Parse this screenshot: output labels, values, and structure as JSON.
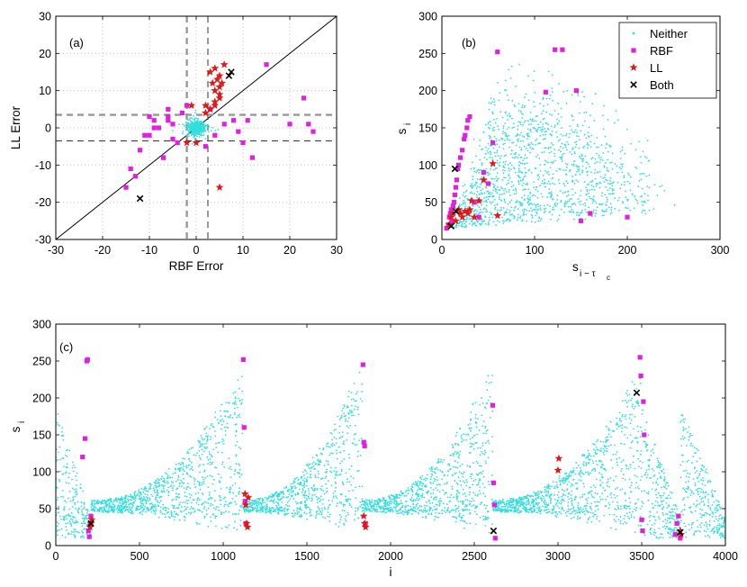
{
  "chart_data": [
    {
      "id": "a",
      "type": "scatter",
      "panel_label": "(a)",
      "xlabel": "RBF Error",
      "ylabel": "LL Error",
      "xlim": [
        -30,
        30
      ],
      "ylim": [
        -30,
        30
      ],
      "xticks": [
        "-30",
        "-20",
        "-10",
        "0",
        "10",
        "20",
        "30"
      ],
      "yticks": [
        "-30",
        "-20",
        "-10",
        "0",
        "10",
        "20",
        "30"
      ],
      "grid": true,
      "reference_lines": {
        "diagonal": "y = x",
        "vertical_dashed": [
          -2,
          2.5
        ],
        "horizontal_dashed": [
          3.5,
          -3.5
        ]
      },
      "series": [
        {
          "name": "Neither",
          "marker": "dot",
          "color": "#33dede",
          "cluster": {
            "center": [
              0,
              0
            ],
            "spread": [
              1.6,
              1.6
            ],
            "count": 520
          }
        },
        {
          "name": "RBF",
          "marker": "square",
          "color": "#e020e0",
          "x": [
            -15,
            -14,
            -13,
            -12,
            -11,
            -10,
            -9,
            -8,
            -7,
            -6,
            -5,
            -4,
            -3,
            -2,
            2,
            3,
            4,
            6,
            8,
            9,
            10,
            11,
            12,
            15,
            20,
            23,
            24,
            25,
            -9,
            -10,
            -7,
            -6,
            -6,
            -5
          ],
          "y": [
            -16,
            -11,
            -13,
            -6,
            -2,
            -2,
            2,
            0,
            -8,
            3,
            1,
            -4,
            4,
            6,
            -5,
            5,
            -2,
            1,
            2,
            -1,
            -4,
            2,
            -8,
            17,
            1,
            8,
            1,
            -1,
            0,
            3,
            -8,
            5,
            2,
            -3
          ]
        },
        {
          "name": "LL",
          "marker": "star",
          "color": "#e01818",
          "x": [
            -2,
            0,
            2,
            3,
            3.5,
            4,
            4,
            4,
            4.5,
            5,
            5,
            5,
            5.5,
            6,
            3,
            4,
            5,
            2,
            5,
            -1
          ],
          "y": [
            -4,
            -4,
            6,
            15,
            12,
            10,
            16,
            7,
            13,
            11,
            14,
            9,
            12,
            17,
            5,
            6,
            8,
            4,
            -16,
            6
          ]
        },
        {
          "name": "Both",
          "marker": "cross",
          "color": "#000000",
          "x": [
            -12,
            7,
            7.5
          ],
          "y": [
            -19,
            14,
            15
          ]
        }
      ]
    },
    {
      "id": "b",
      "type": "scatter",
      "panel_label": "(b)",
      "xlabel": "s",
      "xlabel_sub": "i − τ",
      "xlabel_subsub": "c",
      "ylabel": "s",
      "ylabel_sub": "i",
      "xlim": [
        0,
        300
      ],
      "ylim": [
        0,
        300
      ],
      "xticks": [
        "0",
        "100",
        "200",
        "300"
      ],
      "yticks": [
        "0",
        "50",
        "100",
        "150",
        "200",
        "250",
        "300"
      ],
      "legend": {
        "position": "top-right",
        "entries": [
          "Neither",
          "RBF",
          "LL",
          "Both"
        ]
      },
      "series": [
        {
          "name": "Neither",
          "marker": "dot",
          "color": "#33dede",
          "fan": {
            "origin": [
              10,
              15
            ],
            "x_max": 255,
            "y_max": 255,
            "count": 1400
          }
        },
        {
          "name": "RBF",
          "marker": "square",
          "color": "#e020e0",
          "x": [
            5,
            7,
            8,
            9,
            10,
            11,
            12,
            13,
            14,
            15,
            16,
            17,
            18,
            20,
            22,
            24,
            25,
            27,
            28,
            30,
            35,
            40,
            45,
            50,
            55,
            60,
            112,
            122,
            130,
            145,
            150,
            160,
            200
          ],
          "y": [
            15,
            20,
            30,
            35,
            40,
            25,
            45,
            50,
            60,
            70,
            80,
            95,
            100,
            110,
            120,
            135,
            140,
            150,
            160,
            165,
            50,
            30,
            90,
            75,
            130,
            252,
            198,
            255,
            255,
            200,
            25,
            35,
            30
          ]
        },
        {
          "name": "LL",
          "marker": "star",
          "color": "#e01818",
          "x": [
            8,
            10,
            12,
            15,
            18,
            20,
            22,
            25,
            28,
            30,
            32,
            35,
            40,
            45,
            55,
            60
          ],
          "y": [
            20,
            30,
            35,
            25,
            40,
            35,
            30,
            38,
            35,
            40,
            52,
            30,
            52,
            80,
            102,
            32
          ]
        },
        {
          "name": "Both",
          "marker": "cross",
          "color": "#000000",
          "x": [
            10,
            15,
            14
          ],
          "y": [
            18,
            38,
            95
          ]
        }
      ]
    },
    {
      "id": "c",
      "type": "scatter",
      "panel_label": "(c)",
      "xlabel": "i",
      "ylabel": "s",
      "ylabel_sub": "i",
      "xlim": [
        0,
        4000
      ],
      "ylim": [
        0,
        300
      ],
      "xticks": [
        "0",
        "500",
        "1000",
        "1500",
        "2000",
        "2500",
        "3000",
        "3500",
        "4000"
      ],
      "yticks": [
        "0",
        "50",
        "100",
        "150",
        "200",
        "250",
        "300"
      ],
      "series": [
        {
          "name": "Neither",
          "marker": "dot",
          "color": "#33dede",
          "segments": [
            [
              0,
              210
            ],
            [
              210,
              1120
            ],
            [
              1120,
              1830
            ],
            [
              1830,
              2610
            ],
            [
              2610,
              3500
            ],
            [
              3500,
              3730
            ],
            [
              3730,
              4000
            ]
          ]
        },
        {
          "name": "RBF",
          "marker": "square",
          "color": "#e020e0",
          "x": [
            160,
            175,
            185,
            190,
            195,
            200,
            205,
            210,
            1120,
            1125,
            1130,
            1135,
            1835,
            1840,
            1845,
            1850,
            2610,
            2615,
            2620,
            2625,
            3490,
            3495,
            3500,
            3505,
            3510,
            3515,
            3700,
            3710,
            3720,
            3730
          ],
          "y": [
            120,
            145,
            250,
            252,
            20,
            12,
            30,
            40,
            252,
            160,
            60,
            30,
            245,
            140,
            135,
            30,
            190,
            85,
            55,
            10,
            255,
            230,
            35,
            20,
            195,
            150,
            15,
            30,
            40,
            10
          ]
        },
        {
          "name": "LL",
          "marker": "star",
          "color": "#e01818",
          "x": [
            205,
            210,
            215,
            1130,
            1135,
            1140,
            1145,
            1150,
            1840,
            1845,
            1850,
            3000,
            3005,
            3730,
            3735
          ],
          "y": [
            25,
            30,
            35,
            70,
            55,
            30,
            25,
            65,
            40,
            30,
            25,
            102,
            118,
            20,
            15
          ]
        },
        {
          "name": "Both",
          "marker": "cross",
          "color": "#000000",
          "x": [
            210,
            2615,
            3470,
            3730
          ],
          "y": [
            30,
            20,
            207,
            18
          ]
        }
      ]
    }
  ]
}
